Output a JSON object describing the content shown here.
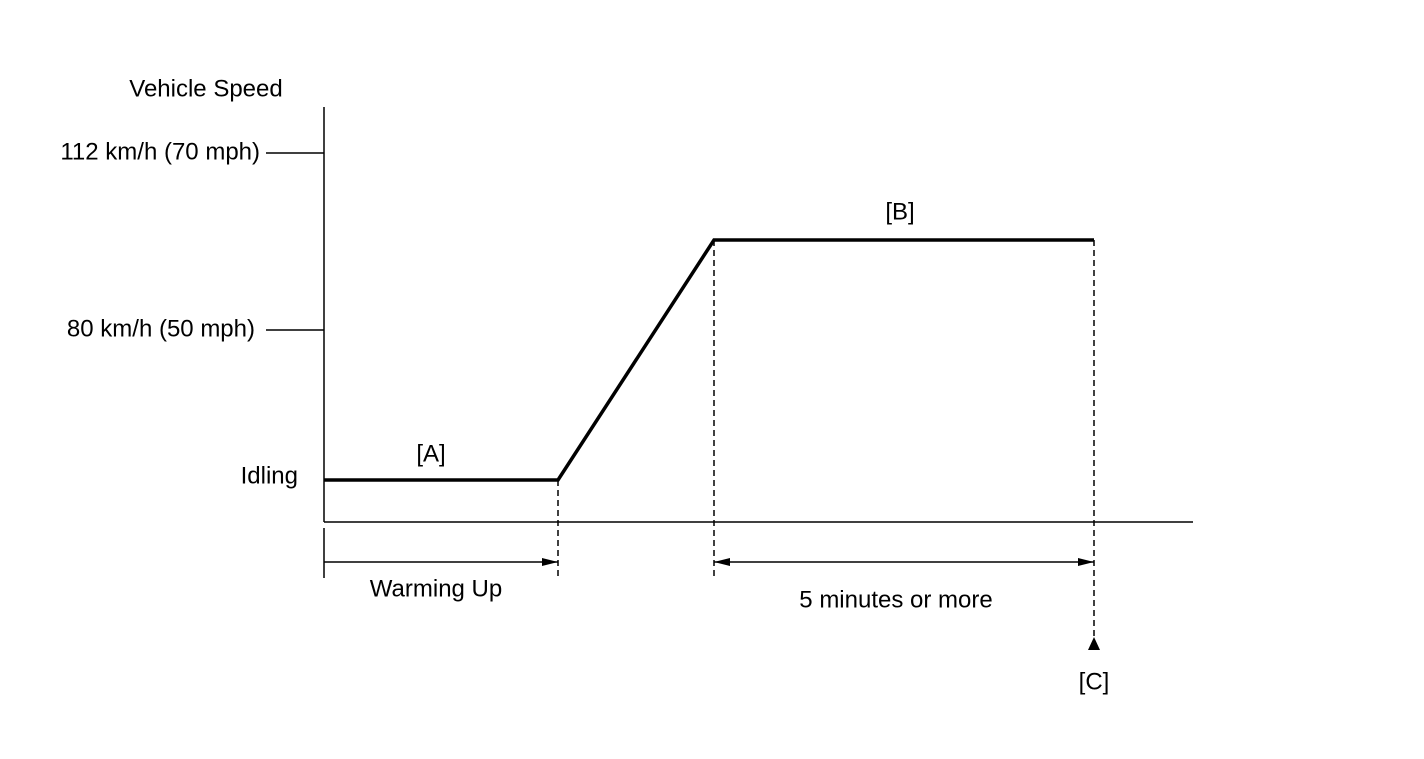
{
  "y_axis": {
    "title": "Vehicle Speed",
    "labels": [
      "112 km/h (70 mph)",
      "80 km/h (50 mph)",
      "Idling"
    ]
  },
  "segments": {
    "a": "[A]",
    "b": "[B]"
  },
  "intervals": [
    "Warming Up",
    "5 minutes or more"
  ],
  "marker": "[C]"
}
